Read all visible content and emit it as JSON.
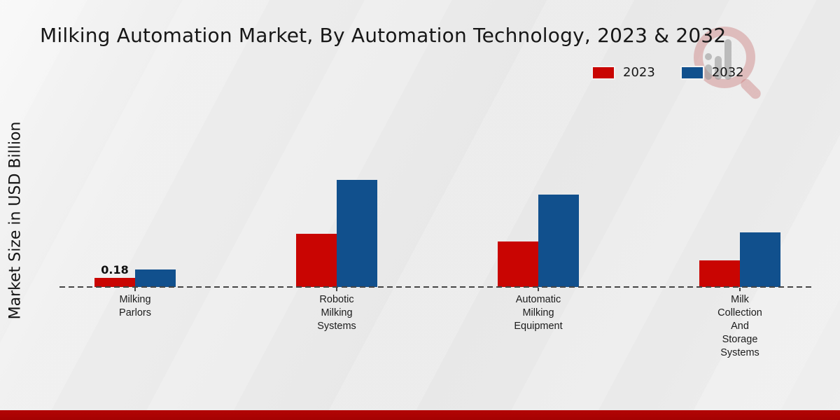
{
  "title": "Milking Automation Market, By Automation Technology, 2023 & 2032",
  "watermark_icon": "magnifier-bar-chart-logo",
  "colors": {
    "series_2023": "#c90502",
    "series_2032": "#11508d",
    "footer_bar": "#b30404",
    "background": "#eaeaea",
    "axis_dash": "#454545"
  },
  "chart_data": {
    "type": "bar",
    "title": "Milking Automation Market, By Automation Technology, 2023 & 2032",
    "ylabel": "Market Size in USD Billion",
    "xlabel": "",
    "categories": [
      "Milking Parlors",
      "Robotic Milking Systems",
      "Automatic Milking Equipment",
      "Milk Collection And Storage Systems"
    ],
    "category_lines": [
      [
        "Milking",
        "Parlors"
      ],
      [
        "Robotic",
        "Milking",
        "Systems"
      ],
      [
        "Automatic",
        "Milking",
        "Equipment"
      ],
      [
        "Milk",
        "Collection",
        "And",
        "Storage",
        "Systems"
      ]
    ],
    "series": [
      {
        "name": "2023",
        "color": "#c90502",
        "values": [
          0.18,
          1.05,
          0.9,
          0.53
        ]
      },
      {
        "name": "2032",
        "color": "#11508d",
        "values": [
          0.35,
          2.13,
          1.83,
          1.09
        ]
      }
    ],
    "annotations": [
      {
        "series": "2023",
        "category": "Milking Parlors",
        "text": "0.18"
      }
    ],
    "ylim": [
      0,
      2.5
    ],
    "grid": false,
    "baseline_style": "dashed",
    "legend_position": "top-right",
    "units": "USD Billion"
  }
}
